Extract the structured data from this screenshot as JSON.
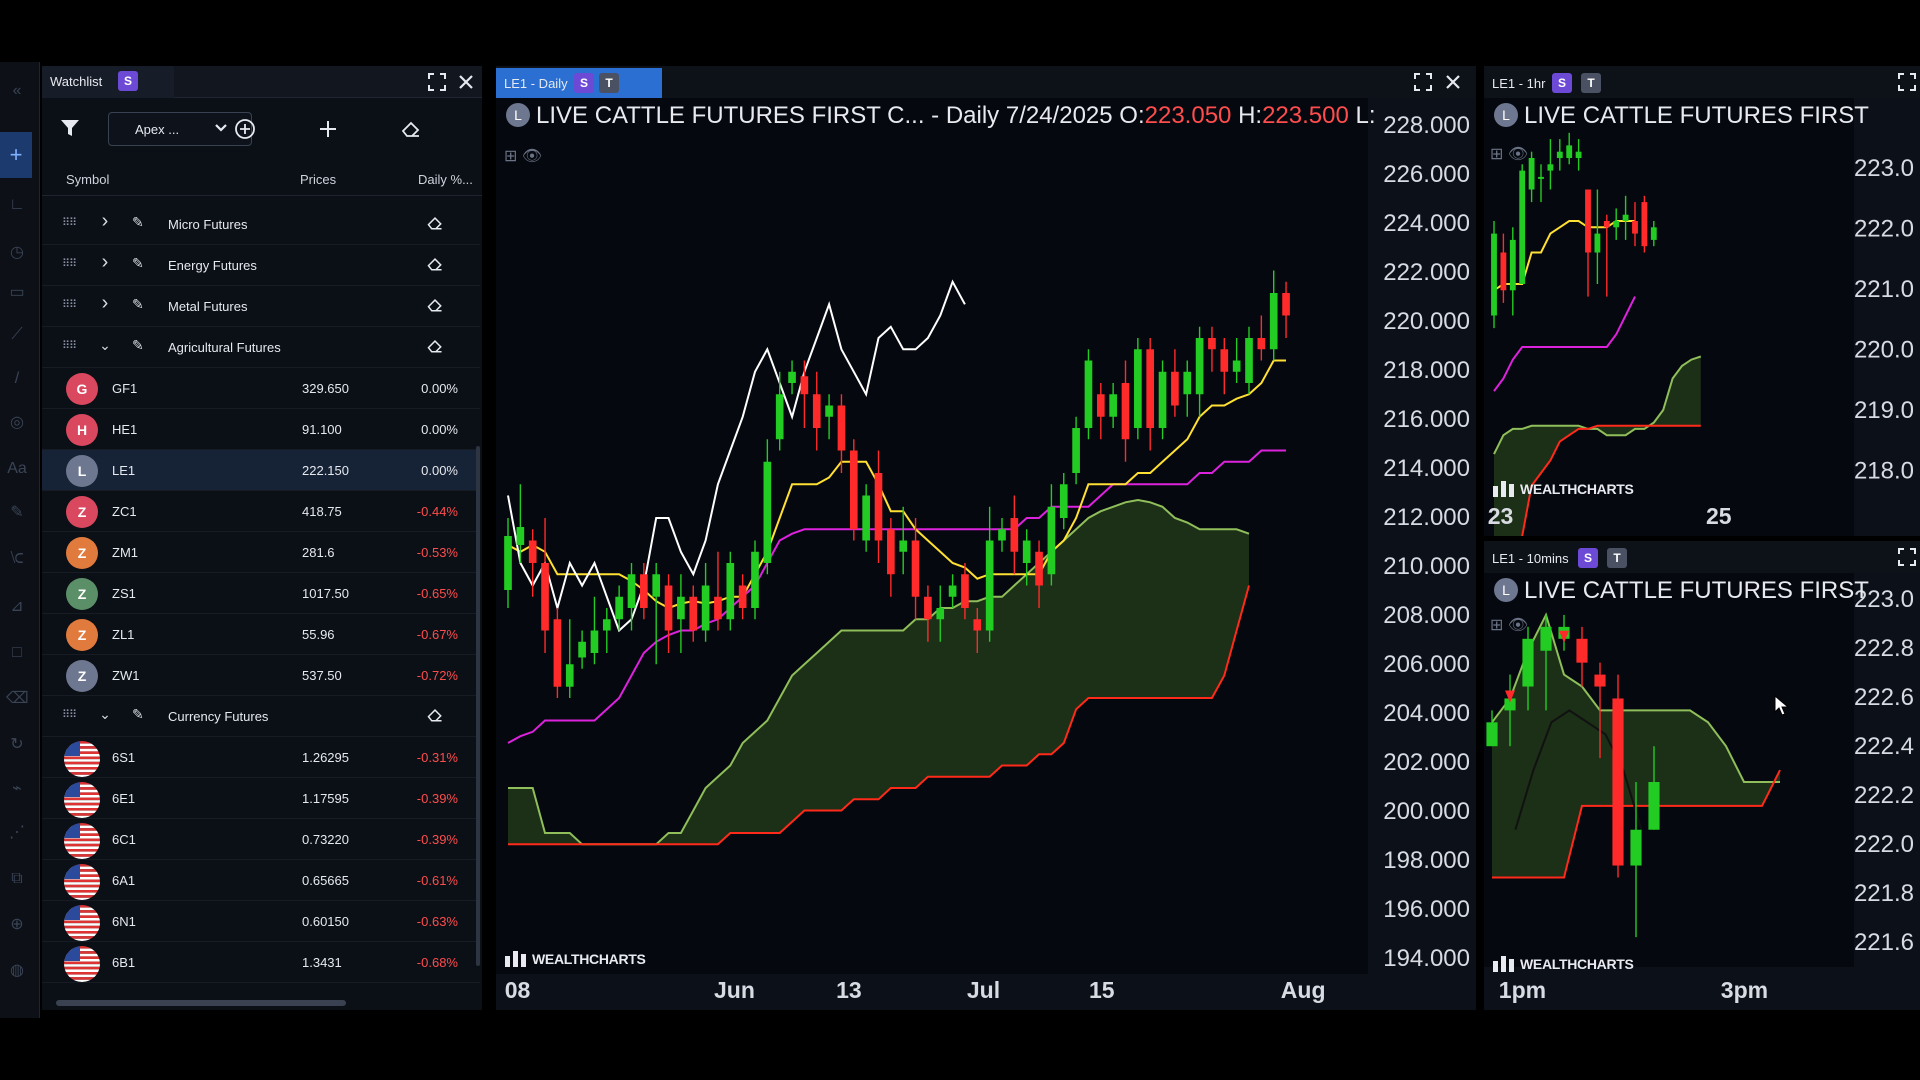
{
  "watchlist": {
    "tab_label": "Watchlist",
    "tab_badge": "S",
    "list_select": "Apex ...",
    "columns": [
      "Symbol",
      "Prices",
      "Daily %..."
    ],
    "groups": [
      {
        "name": "Micro Futures",
        "expanded": false
      },
      {
        "name": "Energy Futures",
        "expanded": false
      },
      {
        "name": "Metal Futures",
        "expanded": false
      },
      {
        "name": "Agricultural Futures",
        "expanded": true
      },
      {
        "name": "Currency Futures",
        "expanded": true
      }
    ],
    "agricultural": [
      {
        "letter": "G",
        "symbol": "GF1",
        "price": "329.650",
        "change": "0.00%",
        "color": "#d9485f"
      },
      {
        "letter": "H",
        "symbol": "HE1",
        "price": "91.100",
        "change": "0.00%",
        "color": "#d9485f"
      },
      {
        "letter": "L",
        "symbol": "LE1",
        "price": "222.150",
        "change": "0.00%",
        "color": "#6e7790"
      },
      {
        "letter": "Z",
        "symbol": "ZC1",
        "price": "418.75",
        "change": "-0.44%",
        "color": "#d9485f"
      },
      {
        "letter": "Z",
        "symbol": "ZM1",
        "price": "281.6",
        "change": "-0.53%",
        "color": "#e07a3d"
      },
      {
        "letter": "Z",
        "symbol": "ZS1",
        "price": "1017.50",
        "change": "-0.65%",
        "color": "#5b8f67"
      },
      {
        "letter": "Z",
        "symbol": "ZL1",
        "price": "55.96",
        "change": "-0.67%",
        "color": "#e07a3d"
      },
      {
        "letter": "Z",
        "symbol": "ZW1",
        "price": "537.50",
        "change": "-0.72%",
        "color": "#6e7790"
      }
    ],
    "currency": [
      {
        "symbol": "6S1",
        "price": "1.26295",
        "change": "-0.31%"
      },
      {
        "symbol": "6E1",
        "price": "1.17595",
        "change": "-0.39%"
      },
      {
        "symbol": "6C1",
        "price": "0.73220",
        "change": "-0.39%"
      },
      {
        "symbol": "6A1",
        "price": "0.65665",
        "change": "-0.61%"
      },
      {
        "symbol": "6N1",
        "price": "0.60150",
        "change": "-0.63%"
      },
      {
        "symbol": "6B1",
        "price": "1.3431",
        "change": "-0.68%"
      }
    ]
  },
  "colors": {
    "up": "#22cc22",
    "down": "#ff2a2a",
    "tenkan": "#ffe033",
    "kijun": "#dd22dd",
    "spanA": "#8fbe5a",
    "spanB": "#ff2a1a",
    "cloud": "#1e3218",
    "lagging": "#ffffff",
    "accent": "#2a6fd1"
  },
  "main_chart": {
    "tab_label": "LE1 - Daily",
    "badge_s": "S",
    "badge_t": "T",
    "logo_letter": "L",
    "title_name": "LIVE CATTLE FUTURES FIRST C... - Daily",
    "title_date": "7/24/2025",
    "open_label": "O:",
    "open": "223.050",
    "high_label": "H:",
    "high": "223.500",
    "low_label": "L:",
    "watermark": "WEALTHCHARTS",
    "y_ticks": [
      "228.000",
      "226.000",
      "224.000",
      "222.000",
      "220.000",
      "218.000",
      "216.000",
      "214.000",
      "212.000",
      "210.000",
      "208.000",
      "206.000",
      "204.000",
      "202.000",
      "200.000",
      "198.000",
      "196.000",
      "194.000"
    ],
    "x_ticks": [
      {
        "label": "08",
        "x": 0.01
      },
      {
        "label": "Jun",
        "x": 0.25
      },
      {
        "label": "13",
        "x": 0.39
      },
      {
        "label": "Jul",
        "x": 0.54
      },
      {
        "label": "15",
        "x": 0.68
      },
      {
        "label": "Aug",
        "x": 0.9
      }
    ],
    "chart_data": {
      "type": "candlestick",
      "y_range": [
        193.0,
        229.0
      ],
      "candles": [
        [
          209.8,
          212.2,
          209.0,
          213.0
        ],
        [
          211.8,
          212.6,
          211.0,
          214.5
        ],
        [
          212.0,
          211.0,
          209.5,
          212.5
        ],
        [
          211.0,
          208.0,
          207.0,
          213.0
        ],
        [
          208.5,
          205.5,
          205.0,
          209.0
        ],
        [
          205.5,
          206.5,
          205.0,
          208.5
        ],
        [
          206.8,
          207.5,
          206.3,
          208.0
        ],
        [
          207.0,
          208.0,
          206.5,
          209.5
        ],
        [
          208.0,
          208.5,
          207.0,
          209.0
        ],
        [
          208.5,
          209.5,
          208.0,
          210.0
        ],
        [
          209.0,
          210.5,
          208.0,
          211.0
        ],
        [
          210.5,
          209.0,
          208.5,
          211.0
        ],
        [
          209.5,
          210.5,
          206.5,
          211.0
        ],
        [
          210.0,
          208.0,
          207.0,
          210.5
        ],
        [
          208.5,
          209.5,
          207.0,
          210.5
        ],
        [
          209.5,
          208.0,
          207.5,
          210.0
        ],
        [
          208.0,
          210.0,
          207.5,
          211.0
        ],
        [
          209.5,
          208.5,
          208.0,
          211.5
        ],
        [
          208.5,
          211.0,
          208.0,
          211.5
        ],
        [
          210.0,
          209.0,
          208.5,
          210.5
        ],
        [
          209.0,
          211.5,
          208.5,
          212.0
        ],
        [
          211.0,
          215.5,
          210.5,
          216.5
        ],
        [
          216.5,
          218.5,
          216.0,
          219.5
        ],
        [
          219.0,
          219.5,
          218.5,
          220.0
        ],
        [
          219.3,
          218.5,
          217.0,
          220.0
        ],
        [
          218.5,
          217.0,
          216.0,
          219.5
        ],
        [
          217.5,
          218.0,
          216.5,
          218.5
        ],
        [
          218.0,
          216.0,
          215.0,
          218.5
        ],
        [
          216.0,
          212.5,
          212.0,
          216.5
        ],
        [
          212.0,
          214.0,
          211.5,
          214.5
        ],
        [
          215.0,
          212.0,
          211.0,
          216.0
        ],
        [
          212.5,
          210.5,
          209.5,
          213.0
        ],
        [
          211.5,
          212.0,
          210.5,
          213.5
        ],
        [
          212.0,
          209.5,
          208.5,
          213.0
        ],
        [
          209.5,
          208.5,
          207.5,
          210.0
        ],
        [
          208.5,
          209.0,
          207.5,
          210.0
        ],
        [
          209.5,
          210.0,
          209.0,
          210.5
        ],
        [
          210.5,
          209.0,
          208.5,
          211.0
        ],
        [
          208.5,
          208.0,
          207.0,
          209.0
        ],
        [
          208.0,
          212.0,
          207.5,
          213.5
        ],
        [
          212.0,
          212.5,
          211.5,
          213.0
        ],
        [
          213.0,
          211.5,
          210.5,
          214.0
        ],
        [
          211.0,
          212.0,
          210.0,
          212.5
        ],
        [
          211.5,
          210.0,
          209.0,
          212.0
        ],
        [
          210.5,
          213.5,
          210.0,
          214.5
        ],
        [
          213.0,
          214.5,
          212.5,
          215.0
        ],
        [
          215.0,
          217.0,
          214.5,
          217.5
        ],
        [
          217.0,
          220.0,
          216.5,
          220.5
        ],
        [
          218.5,
          217.5,
          216.5,
          219.0
        ],
        [
          217.5,
          218.5,
          217.0,
          219.0
        ],
        [
          219.0,
          216.5,
          215.5,
          220.0
        ],
        [
          217.0,
          220.5,
          216.5,
          221.0
        ],
        [
          220.5,
          217.0,
          216.0,
          221.0
        ],
        [
          217.0,
          219.5,
          216.5,
          220.0
        ],
        [
          219.5,
          218.0,
          217.5,
          220.5
        ],
        [
          218.5,
          219.5,
          217.5,
          220.0
        ],
        [
          218.5,
          221.0,
          217.5,
          221.5
        ],
        [
          221.0,
          220.5,
          219.5,
          221.5
        ],
        [
          220.5,
          219.5,
          218.5,
          221.0
        ],
        [
          219.5,
          220.0,
          219.0,
          221.0
        ],
        [
          219.0,
          221.0,
          218.5,
          221.5
        ],
        [
          221.0,
          220.5,
          220.0,
          222.0
        ],
        [
          220.5,
          223.0,
          220.0,
          224.0
        ],
        [
          223.0,
          222.0,
          221.0,
          223.5
        ]
      ],
      "tenkan": [
        211.8,
        211.5,
        211.8,
        211.5,
        210.5,
        210.5,
        210.5,
        210.5,
        210.5,
        210.5,
        210.2,
        209.8,
        209.3,
        209.0,
        209.2,
        209.3,
        209.2,
        209.3,
        209.5,
        209.5,
        210.5,
        211.5,
        213.0,
        214.5,
        214.5,
        214.5,
        214.8,
        215.5,
        215.5,
        215.5,
        214.5,
        213.3,
        213.3,
        212.5,
        212.0,
        211.5,
        211.0,
        210.8,
        210.3,
        210.5,
        210.5,
        210.5,
        210.5,
        210.5,
        211.5,
        212.0,
        213.0,
        214.5,
        214.5,
        214.5,
        214.5,
        215.0,
        215.0,
        215.5,
        216.0,
        216.5,
        217.5,
        218.0,
        218.0,
        218.3,
        218.5,
        219.0,
        220.0,
        220.0
      ],
      "kijun": [
        203.0,
        203.3,
        203.5,
        204.0,
        204.0,
        204.0,
        204.0,
        204.0,
        204.5,
        205.0,
        206.0,
        207.0,
        207.5,
        207.8,
        208.0,
        208.0,
        208.3,
        208.5,
        209.0,
        209.5,
        210.0,
        211.0,
        212.0,
        212.3,
        212.5,
        212.5,
        212.5,
        212.5,
        212.5,
        212.5,
        212.5,
        212.5,
        212.5,
        212.5,
        212.5,
        212.5,
        212.5,
        212.5,
        212.5,
        212.5,
        212.5,
        212.5,
        213.0,
        213.0,
        213.5,
        213.5,
        213.5,
        213.5,
        214.0,
        214.5,
        214.5,
        214.5,
        214.5,
        214.5,
        214.5,
        214.5,
        215.0,
        215.0,
        215.5,
        215.5,
        215.5,
        216.0,
        216.0,
        216.0
      ],
      "lagging": [
        214.0,
        211.0,
        210.0,
        211.0,
        209.0,
        211.0,
        210.0,
        211.0,
        209.5,
        208.0,
        208.5,
        210.0,
        213.0,
        213.0,
        211.5,
        210.5,
        212.0,
        214.5,
        216.0,
        217.5,
        219.5,
        220.5,
        219.0,
        217.5,
        219.5,
        221.0,
        222.5,
        220.5,
        219.5,
        218.5,
        221.0,
        221.5,
        220.5,
        220.5,
        221.0,
        222.0,
        223.5,
        222.5
      ],
      "span_a": [
        201.0,
        201.0,
        201.0,
        199.0,
        199.0,
        199.0,
        198.5,
        198.5,
        198.5,
        198.5,
        198.5,
        198.5,
        198.5,
        199.0,
        199.0,
        200.0,
        201.0,
        201.5,
        202.0,
        203.0,
        203.5,
        204.0,
        205.0,
        206.0,
        206.5,
        207.0,
        207.5,
        208.0,
        208.0,
        208.0,
        208.0,
        208.0,
        208.0,
        208.5,
        208.5,
        209.0,
        209.0,
        209.3,
        209.3,
        209.5,
        209.5,
        210.0,
        210.5,
        211.0,
        211.5,
        212.0,
        212.5,
        213.0,
        213.3,
        213.5,
        213.7,
        213.8,
        213.7,
        213.5,
        213.0,
        212.8,
        212.5,
        212.5,
        212.5,
        212.5,
        212.3
      ],
      "span_b": [
        198.5,
        198.5,
        198.5,
        198.5,
        198.5,
        198.5,
        198.5,
        198.5,
        198.5,
        198.5,
        198.5,
        198.5,
        198.5,
        198.5,
        198.5,
        198.5,
        198.5,
        198.5,
        199.0,
        199.0,
        199.0,
        199.0,
        199.0,
        199.5,
        200.0,
        200.0,
        200.0,
        200.0,
        200.5,
        200.5,
        200.5,
        201.0,
        201.0,
        201.0,
        201.5,
        201.5,
        201.5,
        201.5,
        201.5,
        201.5,
        202.0,
        202.0,
        202.0,
        202.5,
        202.5,
        203.0,
        204.5,
        205.0,
        205.0,
        205.0,
        205.0,
        205.0,
        205.0,
        205.0,
        205.0,
        205.0,
        205.0,
        205.0,
        206.0,
        208.0,
        210.0
      ]
    }
  },
  "chart_1hr": {
    "tab_label": "LE1 - 1hr",
    "badge_s": "S",
    "badge_t": "T",
    "logo_letter": "L",
    "title": "LIVE CATTLE FUTURES FIRST",
    "watermark": "WEALTHCHARTS",
    "y_ticks": [
      "223.0",
      "222.0",
      "221.0",
      "220.0",
      "219.0",
      "218.0"
    ],
    "x_ticks": [
      {
        "label": "23",
        "x": 0.01
      },
      {
        "label": "25",
        "x": 0.6
      }
    ],
    "chart_data": {
      "type": "candlestick",
      "y_range": [
        217.5,
        223.5
      ],
      "candles": [
        [
          221.0,
          222.3,
          220.8,
          222.5
        ],
        [
          222.0,
          221.4,
          221.2,
          222.3
        ],
        [
          221.4,
          222.2,
          221.0,
          222.4
        ],
        [
          221.5,
          223.3,
          221.5,
          223.4
        ],
        [
          223.0,
          223.5,
          222.8,
          223.6
        ],
        [
          223.2,
          223.2,
          222.8,
          223.4
        ],
        [
          223.3,
          223.4,
          223.0,
          223.8
        ],
        [
          223.5,
          223.6,
          223.3,
          223.8
        ],
        [
          223.5,
          223.7,
          223.4,
          223.9
        ],
        [
          223.5,
          223.6,
          223.3,
          223.8
        ],
        [
          223.0,
          222.0,
          221.3,
          223.0
        ],
        [
          222.0,
          222.3,
          221.5,
          223.0
        ],
        [
          222.5,
          222.4,
          221.3,
          222.6
        ],
        [
          222.4,
          222.5,
          222.2,
          222.7
        ],
        [
          222.5,
          222.6,
          222.2,
          222.9
        ],
        [
          222.5,
          222.3,
          222.1,
          222.8
        ],
        [
          222.8,
          222.1,
          222.0,
          222.9
        ],
        [
          222.2,
          222.4,
          222.1,
          222.5
        ]
      ],
      "tenkan": [
        221.4,
        221.5,
        221.5,
        221.5,
        222.0,
        222.0,
        222.3,
        222.4,
        222.5,
        222.5,
        222.4,
        222.4,
        222.4,
        222.5,
        222.5,
        222.5
      ],
      "kijun": [
        219.8,
        220.0,
        220.3,
        220.5,
        220.5,
        220.5,
        220.5,
        220.5,
        220.5,
        220.5,
        220.5,
        220.5,
        220.5,
        220.7,
        221.0,
        221.3
      ],
      "span_a": [
        218.8,
        219.1,
        219.2,
        219.2,
        219.25,
        219.25,
        219.25,
        219.25,
        219.25,
        219.25,
        219.2,
        219.2,
        219.1,
        219.1,
        219.1,
        219.2,
        219.2,
        219.3,
        219.5,
        220.0,
        220.2,
        220.3,
        220.35
      ],
      "span_b": [
        217.0,
        217.0,
        217.0,
        217.5,
        218.3,
        218.5,
        218.7,
        219.0,
        219.1,
        219.2,
        219.2,
        219.25,
        219.25,
        219.25,
        219.25,
        219.25,
        219.25,
        219.25,
        219.25,
        219.25,
        219.25,
        219.25,
        219.25
      ]
    }
  },
  "chart_10min": {
    "tab_label": "LE1 - 10mins",
    "badge_s": "S",
    "badge_t": "T",
    "logo_letter": "L",
    "title": "LIVE CATTLE FUTURES FIRST",
    "watermark": "WEALTHCHARTS",
    "y_ticks": [
      "223.0",
      "222.8",
      "222.6",
      "222.4",
      "222.2",
      "222.0",
      "221.8",
      "221.6"
    ],
    "x_ticks": [
      {
        "label": "1pm",
        "x": 0.04
      },
      {
        "label": "3pm",
        "x": 0.64
      }
    ],
    "chart_data": {
      "type": "candlestick",
      "y_range": [
        221.55,
        223.05
      ],
      "candles": [
        [
          222.45,
          222.55,
          222.45,
          222.6
        ],
        [
          222.6,
          222.65,
          222.45,
          222.75
        ],
        [
          222.7,
          222.9,
          222.6,
          222.95
        ],
        [
          222.85,
          222.95,
          222.6,
          223.0
        ],
        [
          222.9,
          222.95,
          222.85,
          223.0
        ],
        [
          222.9,
          222.8,
          222.7,
          222.95
        ],
        [
          222.75,
          222.7,
          222.4,
          222.8
        ],
        [
          222.65,
          221.95,
          221.9,
          222.75
        ],
        [
          221.95,
          222.1,
          221.65,
          222.3
        ],
        [
          222.1,
          222.3,
          222.1,
          222.45
        ]
      ],
      "span_a": [
        222.55,
        222.65,
        222.85,
        223.0,
        222.75,
        222.7,
        222.6,
        222.6,
        222.6,
        222.6,
        222.6,
        222.6,
        222.55,
        222.45,
        222.3,
        222.3,
        222.3
      ],
      "span_b": [
        221.9,
        221.9,
        221.9,
        221.9,
        221.9,
        222.2,
        222.2,
        222.2,
        222.2,
        222.2,
        222.2,
        222.2,
        222.2,
        222.2,
        222.2,
        222.2,
        222.35
      ],
      "lagging": [
        222.1,
        222.35,
        222.55,
        222.6,
        222.55,
        222.5,
        222.35,
        222.1
      ],
      "markers": [
        [
          1,
          222.65
        ],
        [
          4,
          222.9
        ],
        [
          5,
          222.85
        ],
        [
          7,
          222.45
        ]
      ]
    }
  }
}
